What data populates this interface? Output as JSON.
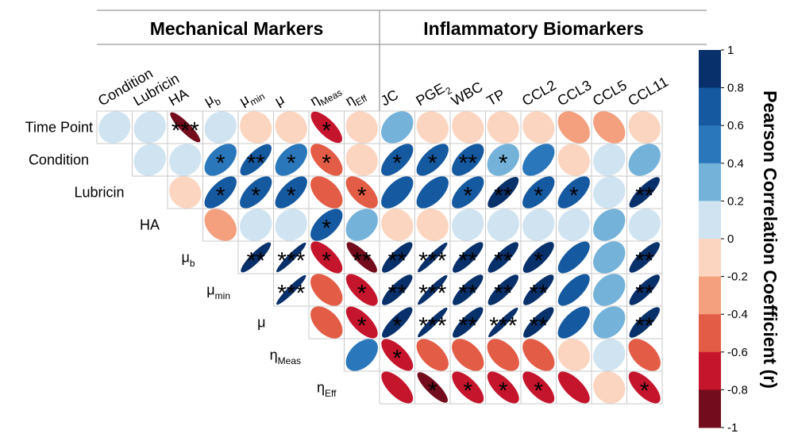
{
  "chart_data": {
    "type": "heatmap",
    "title": "",
    "groups": [
      {
        "label": "Mechanical Markers",
        "columns": [
          "Condition",
          "Lubricin",
          "HA",
          "μb",
          "μmin",
          "μ",
          "ηMeas",
          "ηEff"
        ]
      },
      {
        "label": "Inflammatory Biomarkers",
        "columns": [
          "JC",
          "PGE2",
          "WBC",
          "TP",
          "CCL2",
          "CCL3",
          "CCL5",
          "CCL11"
        ]
      }
    ],
    "columns": [
      {
        "label": "Condition"
      },
      {
        "label": "Lubricin"
      },
      {
        "label": "HA"
      },
      {
        "label": "μ",
        "sub": "b"
      },
      {
        "label": "μ",
        "sub": "min"
      },
      {
        "label": "μ"
      },
      {
        "label": "η",
        "sub": "Meas"
      },
      {
        "label": "η",
        "sub": "Eff"
      },
      {
        "label": "JC"
      },
      {
        "label": "PGE",
        "sub": "2"
      },
      {
        "label": "WBC"
      },
      {
        "label": "TP"
      },
      {
        "label": "CCL2"
      },
      {
        "label": "CCL3"
      },
      {
        "label": "CCL5"
      },
      {
        "label": "CCL11"
      }
    ],
    "rows": [
      {
        "label": "Time Point"
      },
      {
        "label": "Condition"
      },
      {
        "label": "Lubricin"
      },
      {
        "label": "HA"
      },
      {
        "label": "μ",
        "sub": "b"
      },
      {
        "label": "μ",
        "sub": "min"
      },
      {
        "label": "μ"
      },
      {
        "label": "η",
        "sub": "Meas"
      },
      {
        "label": "η",
        "sub": "Eff"
      }
    ],
    "cells": [
      [
        {
          "r": 0.1,
          "sig": ""
        },
        {
          "r": 0.1,
          "sig": ""
        },
        {
          "r": -0.9,
          "sig": "***"
        },
        {
          "r": 0.1,
          "sig": ""
        },
        {
          "r": -0.1,
          "sig": ""
        },
        {
          "r": -0.1,
          "sig": ""
        },
        {
          "r": -0.75,
          "sig": "*"
        },
        {
          "r": -0.1,
          "sig": ""
        },
        {
          "r": 0.3,
          "sig": ""
        },
        {
          "r": -0.1,
          "sig": ""
        },
        {
          "r": -0.1,
          "sig": ""
        },
        {
          "r": -0.1,
          "sig": ""
        },
        {
          "r": -0.1,
          "sig": ""
        },
        {
          "r": -0.35,
          "sig": ""
        },
        {
          "r": -0.35,
          "sig": ""
        },
        {
          "r": -0.1,
          "sig": ""
        }
      ],
      [
        null,
        {
          "r": 0.1,
          "sig": ""
        },
        {
          "r": 0.1,
          "sig": ""
        },
        {
          "r": 0.5,
          "sig": "*"
        },
        {
          "r": 0.75,
          "sig": "**"
        },
        {
          "r": 0.5,
          "sig": "*"
        },
        {
          "r": -0.6,
          "sig": "*"
        },
        {
          "r": -0.1,
          "sig": ""
        },
        {
          "r": 0.65,
          "sig": "*"
        },
        {
          "r": 0.65,
          "sig": "*"
        },
        {
          "r": 0.6,
          "sig": "**"
        },
        {
          "r": 0.3,
          "sig": "*"
        },
        {
          "r": 0.5,
          "sig": ""
        },
        {
          "r": -0.1,
          "sig": ""
        },
        {
          "r": 0.1,
          "sig": ""
        },
        {
          "r": 0.3,
          "sig": ""
        }
      ],
      [
        null,
        null,
        {
          "r": -0.1,
          "sig": ""
        },
        {
          "r": 0.65,
          "sig": "*"
        },
        {
          "r": 0.65,
          "sig": "*"
        },
        {
          "r": 0.65,
          "sig": "*"
        },
        {
          "r": -0.5,
          "sig": ""
        },
        {
          "r": -0.6,
          "sig": "*"
        },
        {
          "r": 0.6,
          "sig": ""
        },
        {
          "r": 0.6,
          "sig": ""
        },
        {
          "r": 0.65,
          "sig": "*"
        },
        {
          "r": 0.8,
          "sig": "**"
        },
        {
          "r": 0.65,
          "sig": "*"
        },
        {
          "r": 0.65,
          "sig": "*"
        },
        {
          "r": 0.1,
          "sig": ""
        },
        {
          "r": 0.85,
          "sig": "**"
        }
      ],
      [
        null,
        null,
        null,
        {
          "r": -0.3,
          "sig": ""
        },
        {
          "r": 0.1,
          "sig": ""
        },
        {
          "r": 0.1,
          "sig": ""
        },
        {
          "r": 0.6,
          "sig": "*"
        },
        {
          "r": 0.3,
          "sig": ""
        },
        {
          "r": -0.1,
          "sig": ""
        },
        {
          "r": -0.1,
          "sig": ""
        },
        {
          "r": 0.1,
          "sig": ""
        },
        {
          "r": 0.1,
          "sig": ""
        },
        {
          "r": 0.1,
          "sig": ""
        },
        {
          "r": 0.1,
          "sig": ""
        },
        {
          "r": 0.3,
          "sig": ""
        },
        {
          "r": 0.1,
          "sig": ""
        }
      ],
      [
        null,
        null,
        null,
        null,
        {
          "r": 0.9,
          "sig": "**"
        },
        {
          "r": 0.95,
          "sig": "***"
        },
        {
          "r": -0.7,
          "sig": "*"
        },
        {
          "r": -0.85,
          "sig": "**"
        },
        {
          "r": 0.85,
          "sig": "**"
        },
        {
          "r": 0.95,
          "sig": "***"
        },
        {
          "r": 0.85,
          "sig": "**"
        },
        {
          "r": 0.85,
          "sig": "**"
        },
        {
          "r": 0.8,
          "sig": "*"
        },
        {
          "r": 0.7,
          "sig": ""
        },
        {
          "r": 0.3,
          "sig": ""
        },
        {
          "r": 0.85,
          "sig": "**"
        }
      ],
      [
        null,
        null,
        null,
        null,
        null,
        {
          "r": 0.95,
          "sig": "***"
        },
        {
          "r": -0.5,
          "sig": ""
        },
        {
          "r": -0.7,
          "sig": "*"
        },
        {
          "r": 0.85,
          "sig": "**"
        },
        {
          "r": 0.95,
          "sig": "***"
        },
        {
          "r": 0.85,
          "sig": "**"
        },
        {
          "r": 0.85,
          "sig": "**"
        },
        {
          "r": 0.85,
          "sig": "**"
        },
        {
          "r": 0.7,
          "sig": ""
        },
        {
          "r": 0.3,
          "sig": ""
        },
        {
          "r": 0.85,
          "sig": "**"
        }
      ],
      [
        null,
        null,
        null,
        null,
        null,
        null,
        {
          "r": -0.5,
          "sig": ""
        },
        {
          "r": -0.7,
          "sig": "*"
        },
        {
          "r": 0.85,
          "sig": "*"
        },
        {
          "r": 0.95,
          "sig": "***"
        },
        {
          "r": 0.85,
          "sig": "**"
        },
        {
          "r": 0.95,
          "sig": "***"
        },
        {
          "r": 0.85,
          "sig": "**"
        },
        {
          "r": 0.65,
          "sig": ""
        },
        {
          "r": 0.3,
          "sig": ""
        },
        {
          "r": 0.85,
          "sig": "**"
        }
      ],
      [
        null,
        null,
        null,
        null,
        null,
        null,
        null,
        {
          "r": 0.45,
          "sig": ""
        },
        {
          "r": -0.7,
          "sig": "*"
        },
        {
          "r": -0.55,
          "sig": ""
        },
        {
          "r": -0.5,
          "sig": ""
        },
        {
          "r": -0.5,
          "sig": ""
        },
        {
          "r": -0.5,
          "sig": ""
        },
        {
          "r": -0.1,
          "sig": ""
        },
        {
          "r": 0.1,
          "sig": ""
        },
        {
          "r": -0.5,
          "sig": ""
        }
      ],
      [
        null,
        null,
        null,
        null,
        null,
        null,
        null,
        null,
        {
          "r": -0.7,
          "sig": ""
        },
        {
          "r": -0.85,
          "sig": "*"
        },
        {
          "r": -0.7,
          "sig": "*"
        },
        {
          "r": -0.7,
          "sig": "*"
        },
        {
          "r": -0.7,
          "sig": "*"
        },
        {
          "r": -0.7,
          "sig": ""
        },
        {
          "r": -0.1,
          "sig": ""
        },
        {
          "r": -0.7,
          "sig": "*"
        }
      ]
    ],
    "colorbar": {
      "label": "Pearson Correlation Coefficient (r)",
      "ticks": [
        "1",
        "0.8",
        "0.6",
        "0.4",
        "0.2",
        "0",
        "-0.2",
        "-0.4",
        "-0.6",
        "-0.8",
        "-1"
      ],
      "range": [
        -1,
        1
      ],
      "bins": [
        {
          "from": 0.8,
          "to": 1.0,
          "color": "#08306b"
        },
        {
          "from": 0.6,
          "to": 0.8,
          "color": "#1559a0"
        },
        {
          "from": 0.4,
          "to": 0.6,
          "color": "#2a77bb"
        },
        {
          "from": 0.2,
          "to": 0.4,
          "color": "#74b2da"
        },
        {
          "from": 0.0,
          "to": 0.2,
          "color": "#cfe3f1"
        },
        {
          "from": -0.2,
          "to": 0.0,
          "color": "#fbd5c0"
        },
        {
          "from": -0.4,
          "to": -0.2,
          "color": "#f4a07e"
        },
        {
          "from": -0.6,
          "to": -0.4,
          "color": "#e35c46"
        },
        {
          "from": -0.8,
          "to": -0.6,
          "color": "#c5152c"
        },
        {
          "from": -1.0,
          "to": -0.8,
          "color": "#730c1c"
        }
      ]
    }
  }
}
